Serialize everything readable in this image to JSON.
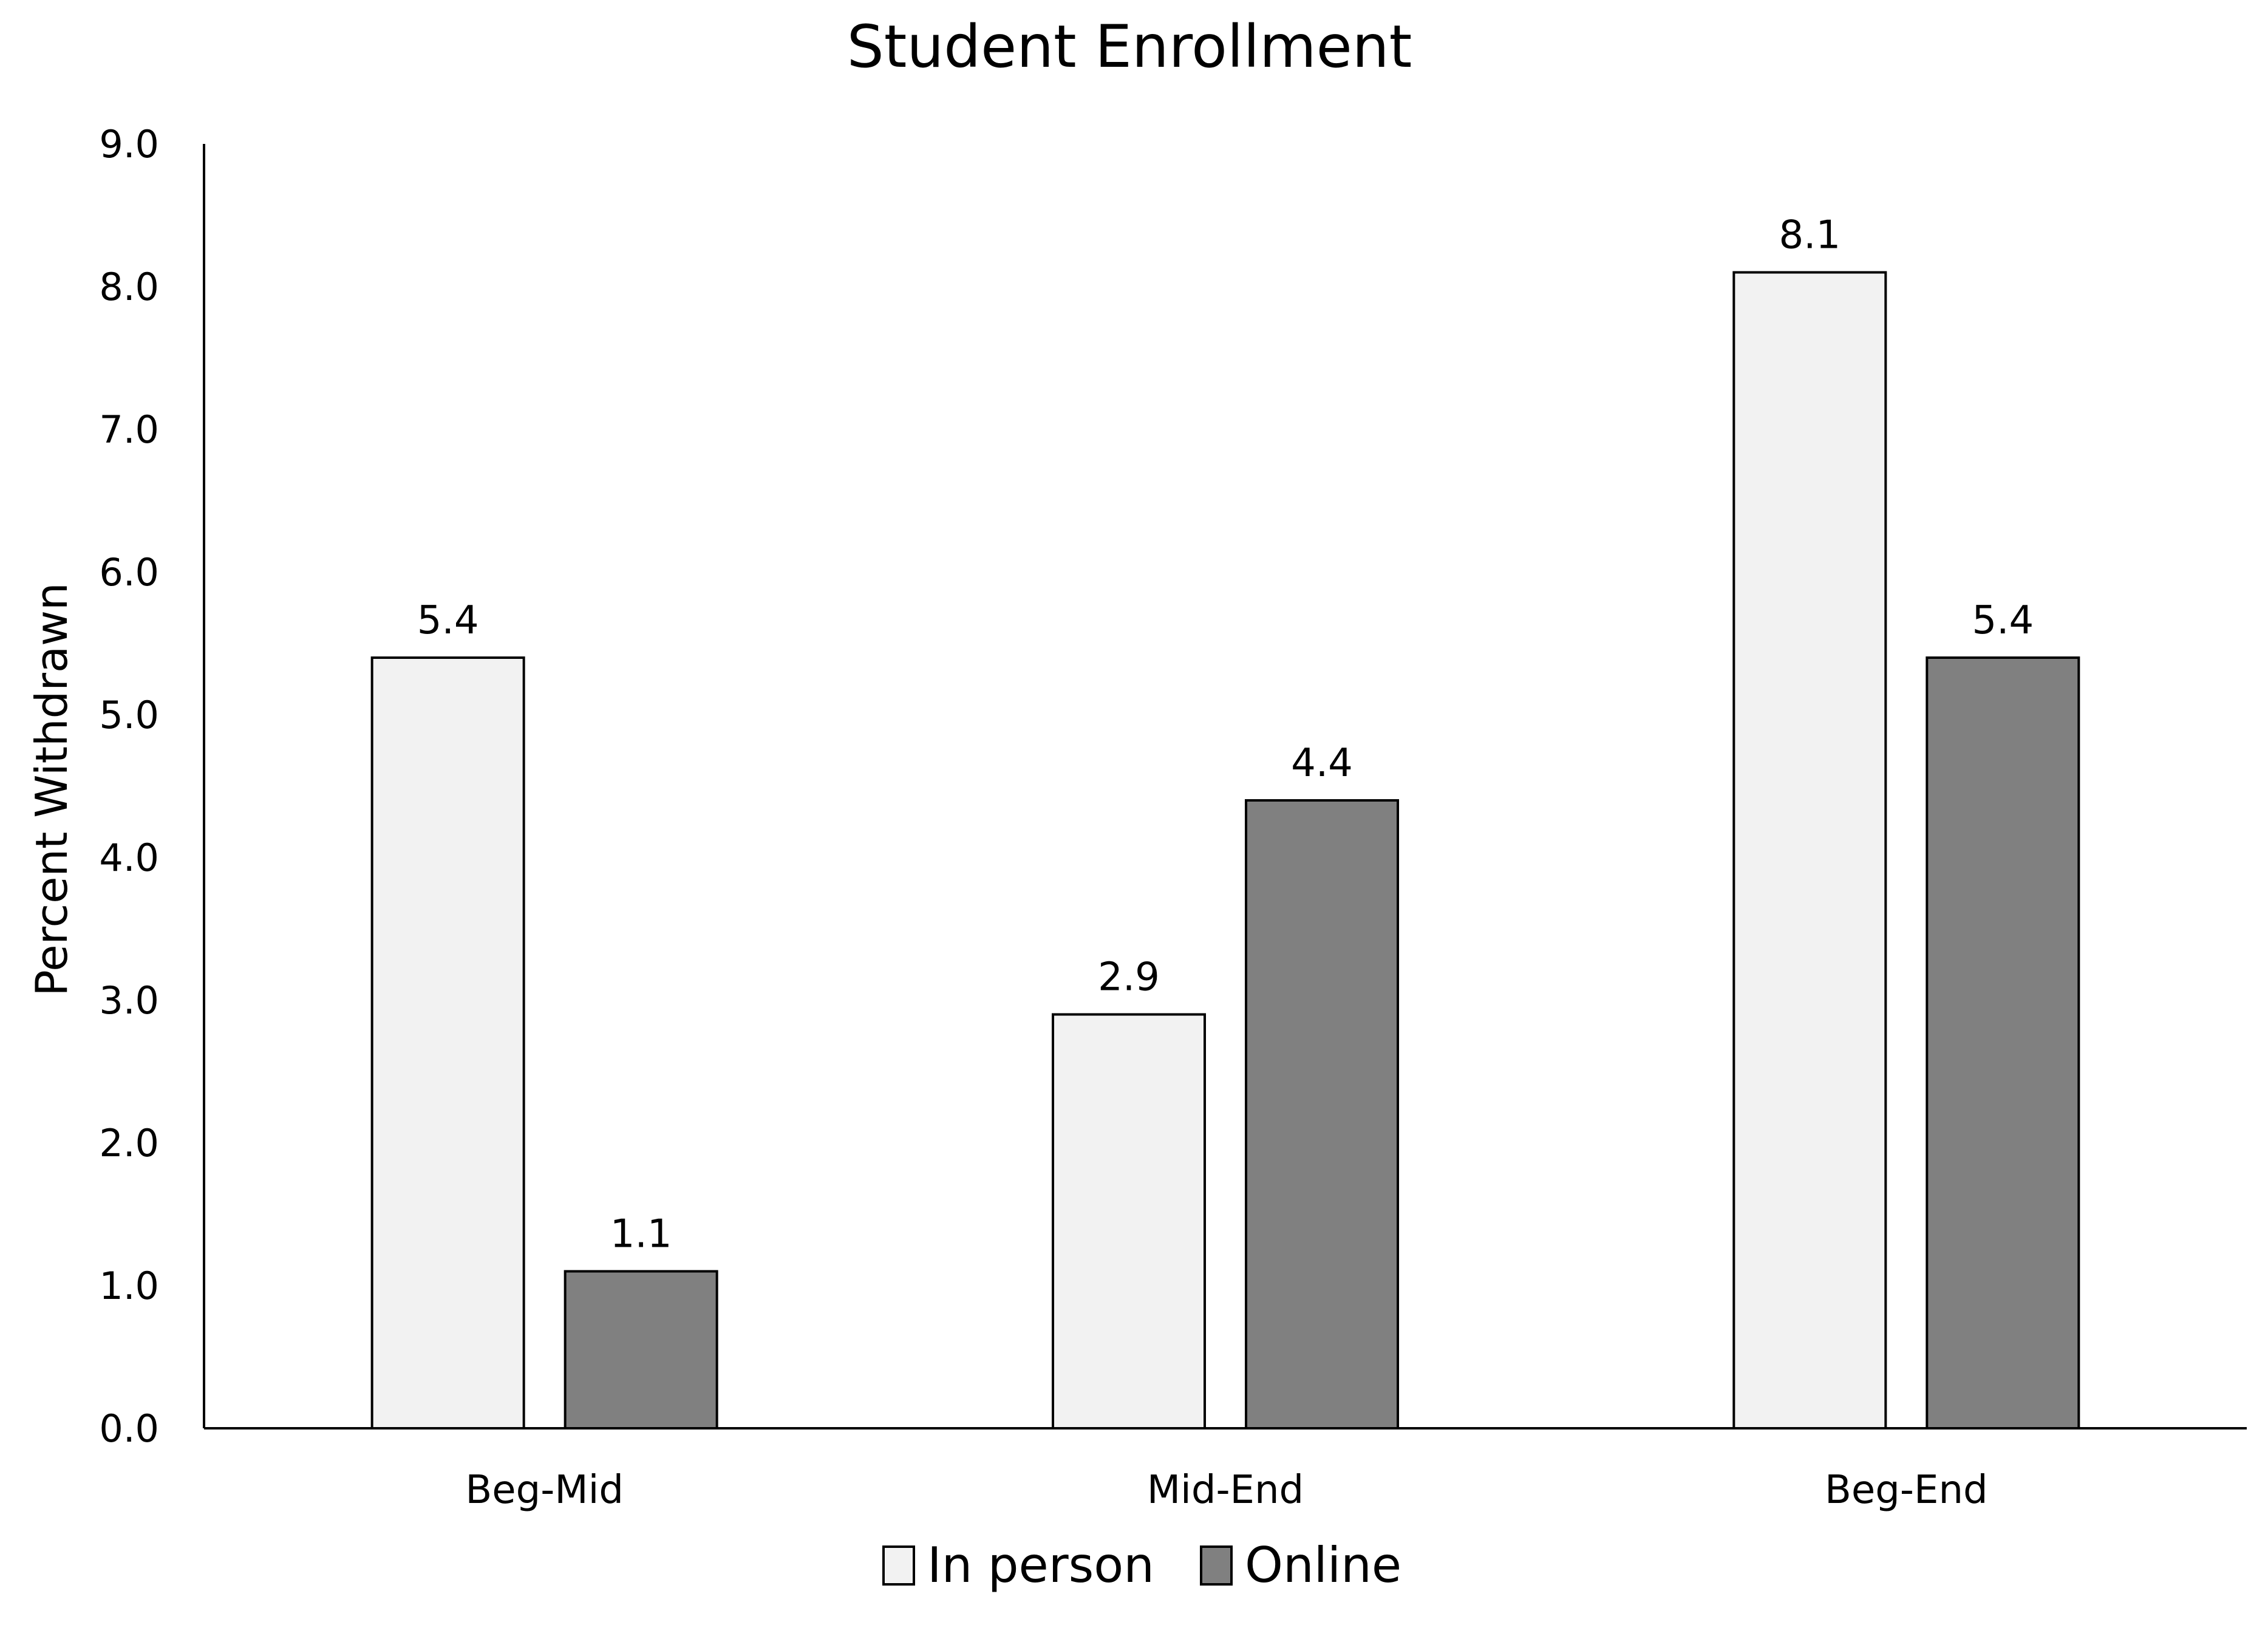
{
  "chart_data": {
    "type": "bar",
    "title": "Student Enrollment",
    "xlabel": "",
    "ylabel": "Percent Withdrawn",
    "categories": [
      "Beg-Mid",
      "Mid-End",
      "Beg-End"
    ],
    "ylim": [
      0,
      9
    ],
    "ytick_step": 1,
    "ytick_labels": [
      "0.0",
      "1.0",
      "2.0",
      "3.0",
      "4.0",
      "5.0",
      "6.0",
      "7.0",
      "8.0",
      "9.0"
    ],
    "grid": false,
    "legend_position": "bottom",
    "series": [
      {
        "name": "In person",
        "values": [
          5.4,
          2.9,
          8.1
        ],
        "labels": [
          "5.4",
          "2.9",
          "8.1"
        ],
        "color": "#f2f2f2"
      },
      {
        "name": "Online",
        "values": [
          1.1,
          4.4,
          5.4
        ],
        "labels": [
          "1.1",
          "4.4",
          "5.4"
        ],
        "color": "#808080"
      }
    ]
  }
}
